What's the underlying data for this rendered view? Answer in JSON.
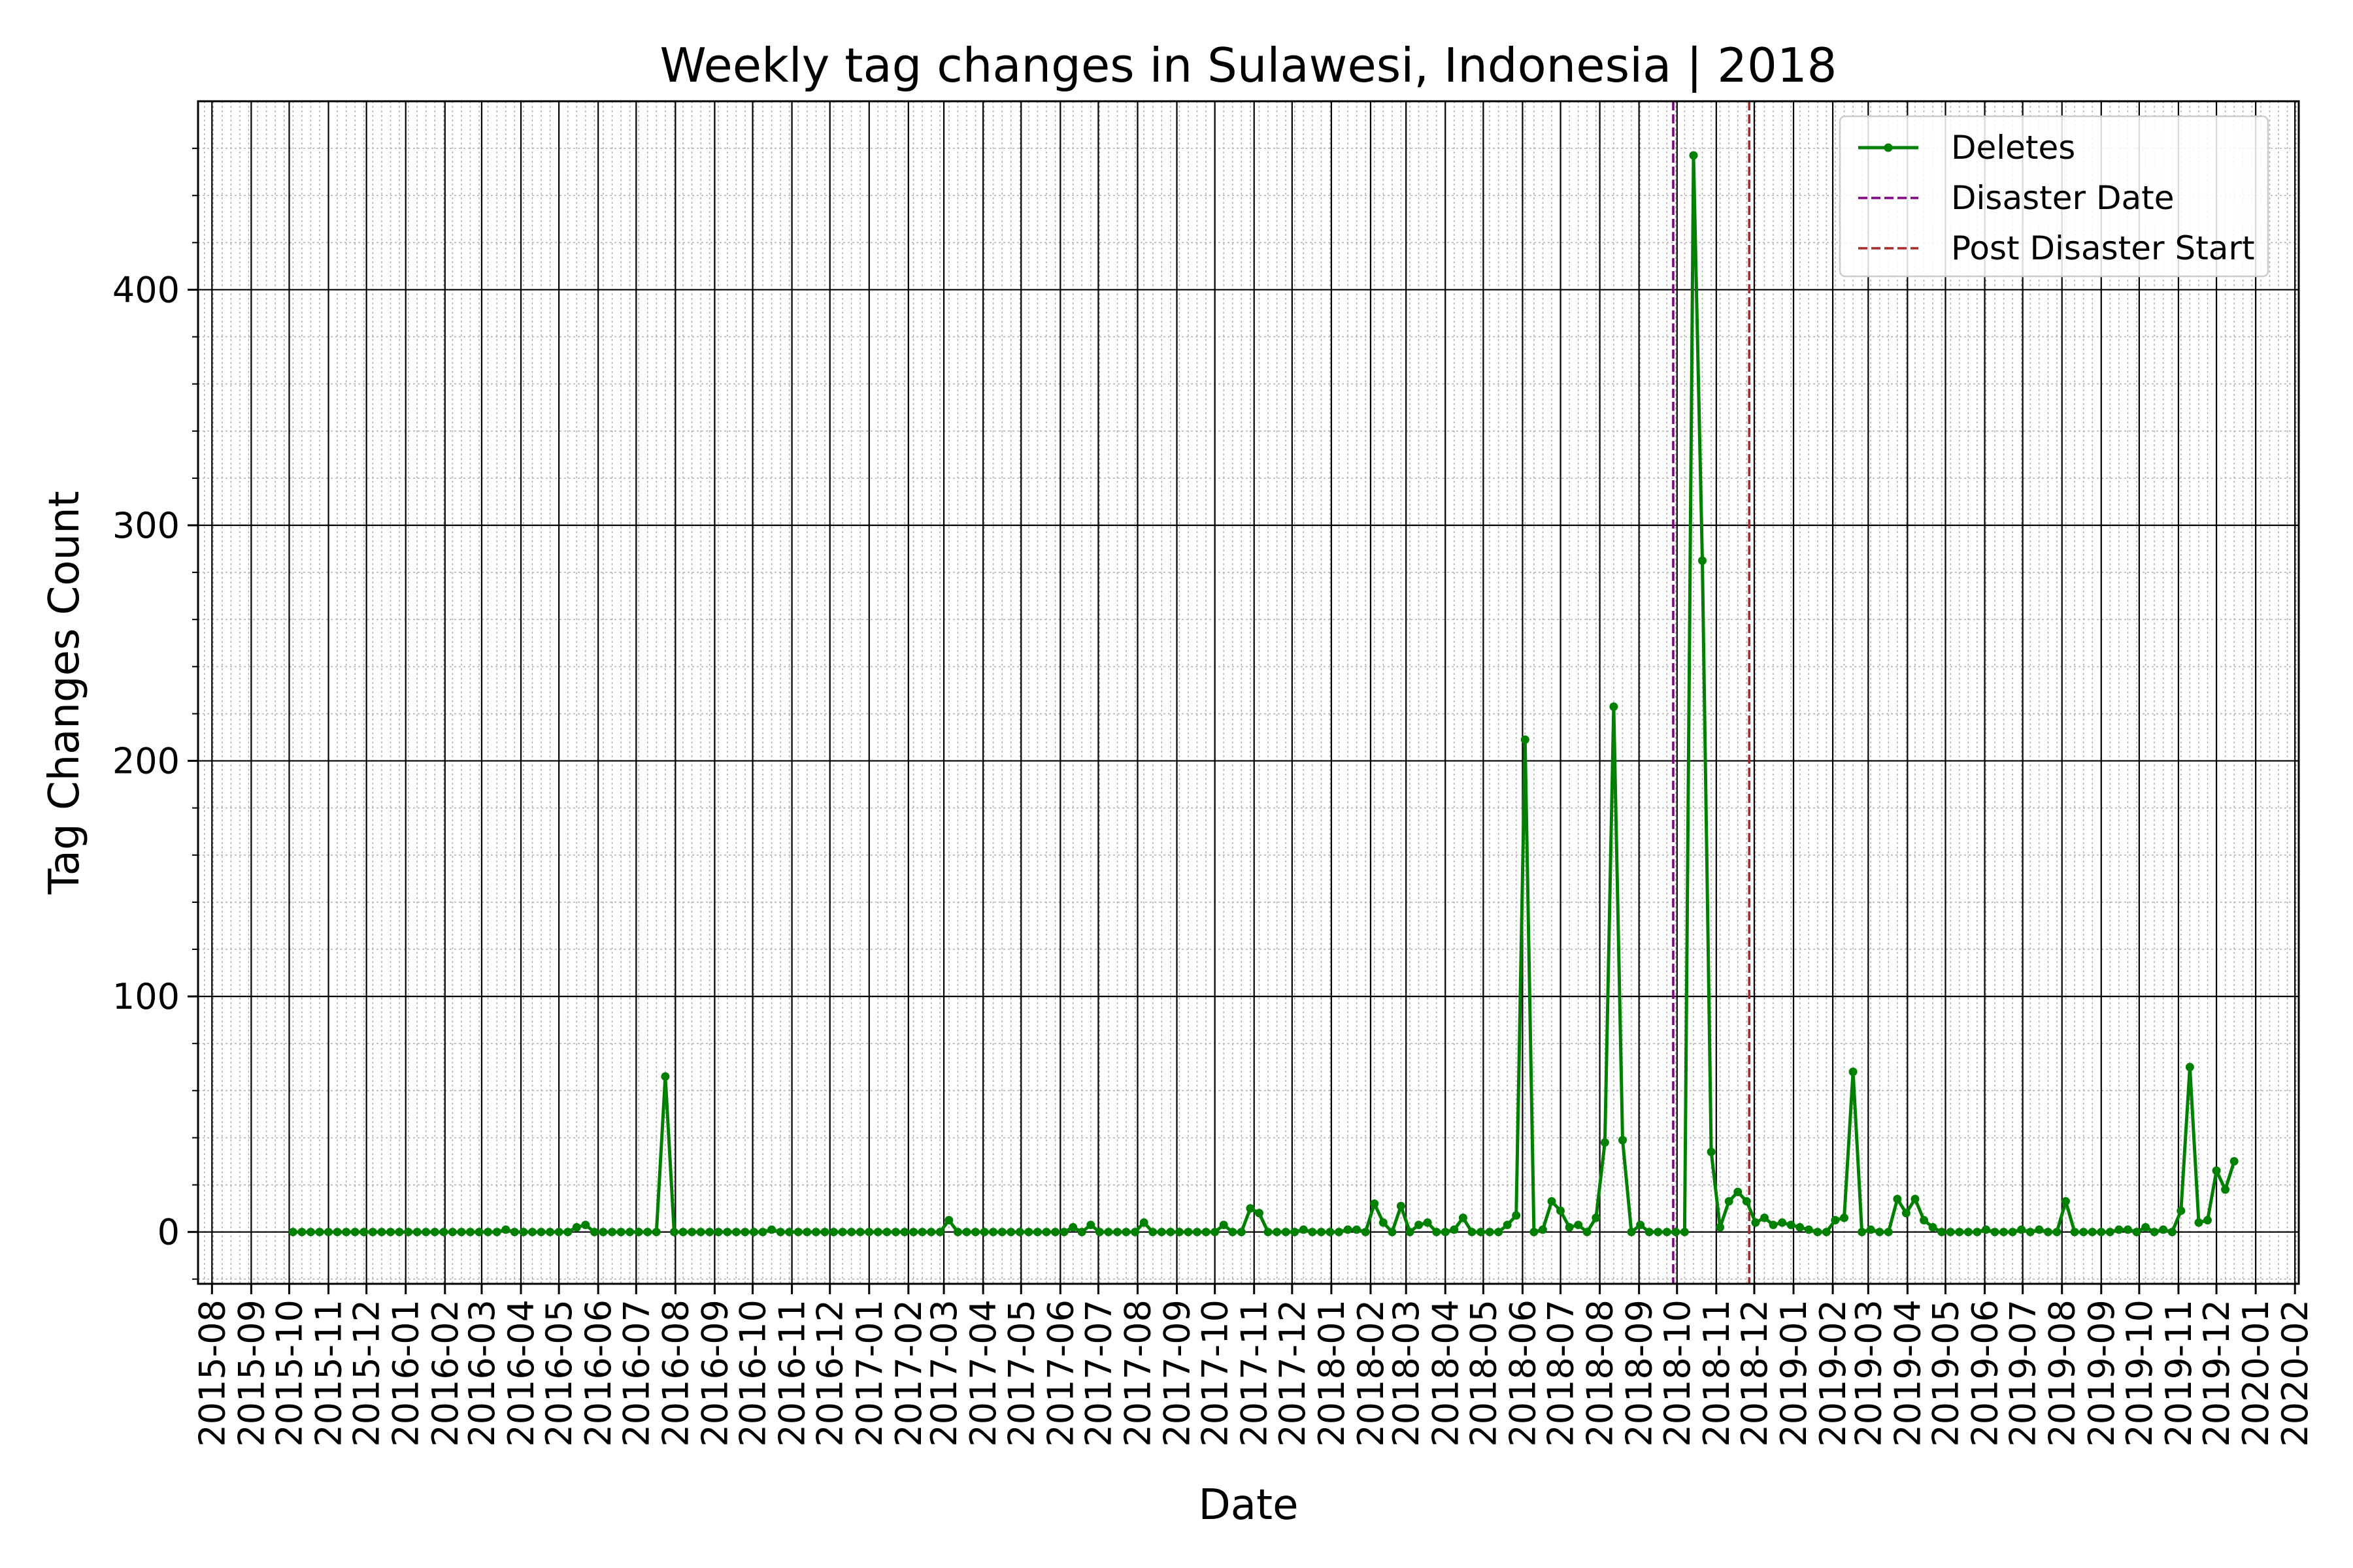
{
  "chart_data": {
    "type": "line",
    "title": "Weekly tag changes in Sulawesi, Indonesia | 2018",
    "xlabel": "Date",
    "ylabel": "Tag Changes Count",
    "xlim": [
      "2015-07-21",
      "2020-02-04"
    ],
    "ylim": [
      -22,
      480
    ],
    "yticks": [
      0,
      100,
      200,
      300,
      400
    ],
    "xticks": [
      "2015-08",
      "2015-09",
      "2015-10",
      "2015-11",
      "2015-12",
      "2016-01",
      "2016-02",
      "2016-03",
      "2016-04",
      "2016-05",
      "2016-06",
      "2016-07",
      "2016-08",
      "2016-09",
      "2016-10",
      "2016-11",
      "2016-12",
      "2017-01",
      "2017-02",
      "2017-03",
      "2017-04",
      "2017-05",
      "2017-06",
      "2017-07",
      "2017-08",
      "2017-09",
      "2017-10",
      "2017-11",
      "2017-12",
      "2018-01",
      "2018-02",
      "2018-03",
      "2018-04",
      "2018-05",
      "2018-06",
      "2018-07",
      "2018-08",
      "2018-09",
      "2018-10",
      "2018-11",
      "2018-12",
      "2019-01",
      "2019-02",
      "2019-03",
      "2019-04",
      "2019-05",
      "2019-06",
      "2019-07",
      "2019-08",
      "2019-09",
      "2019-10",
      "2019-11",
      "2019-12",
      "2020-01",
      "2020-02"
    ],
    "grid": true,
    "legend_position": "top-right",
    "series": [
      {
        "name": "Deletes",
        "color": "#008000",
        "start_date": "2015-10-04",
        "interval_days": 7,
        "values": [
          0,
          0,
          0,
          0,
          0,
          0,
          0,
          0,
          0,
          0,
          0,
          0,
          0,
          0,
          0,
          0,
          0,
          0,
          0,
          0,
          0,
          0,
          0,
          0,
          1,
          0,
          0,
          0,
          0,
          0,
          0,
          0,
          2,
          3,
          0,
          0,
          0,
          0,
          0,
          0,
          0,
          0,
          66,
          0,
          0,
          0,
          0,
          0,
          0,
          0,
          0,
          0,
          0,
          0,
          1,
          0,
          0,
          0,
          0,
          0,
          0,
          0,
          0,
          0,
          0,
          0,
          0,
          0,
          0,
          0,
          0,
          0,
          0,
          0,
          5,
          0,
          0,
          0,
          0,
          0,
          0,
          0,
          0,
          0,
          0,
          0,
          0,
          0,
          2,
          0,
          3,
          0,
          0,
          0,
          0,
          0,
          4,
          0,
          0,
          0,
          0,
          0,
          0,
          0,
          0,
          3,
          0,
          0,
          10,
          8,
          0,
          0,
          0,
          0,
          1,
          0,
          0,
          0,
          0,
          1,
          1,
          0,
          12,
          4,
          0,
          11,
          0,
          3,
          4,
          0,
          0,
          1,
          6,
          0,
          0,
          0,
          0,
          3,
          7,
          209,
          0,
          1,
          13,
          9,
          2,
          3,
          0,
          6,
          38,
          223,
          39,
          0,
          3,
          0,
          0,
          0,
          0,
          0,
          457,
          285,
          34,
          2,
          13,
          17,
          13,
          4,
          6,
          3,
          4,
          3,
          2,
          1,
          0,
          0,
          5,
          6,
          68,
          0,
          1,
          0,
          0,
          14,
          8,
          14,
          5,
          2,
          0,
          0,
          0,
          0,
          0,
          1,
          0,
          0,
          0,
          1,
          0,
          1,
          0,
          0,
          13,
          0,
          0,
          0,
          0,
          0,
          1,
          1,
          0,
          2,
          0,
          1,
          0,
          9,
          70,
          4,
          5,
          26,
          18,
          30
        ]
      }
    ],
    "vlines": [
      {
        "name": "Disaster Date",
        "date": "2018-09-28",
        "color": "#800080",
        "style": "dashed"
      },
      {
        "name": "Post Disaster Start",
        "date": "2018-11-27",
        "color": "#a52a2a",
        "style": "dashed"
      }
    ]
  }
}
